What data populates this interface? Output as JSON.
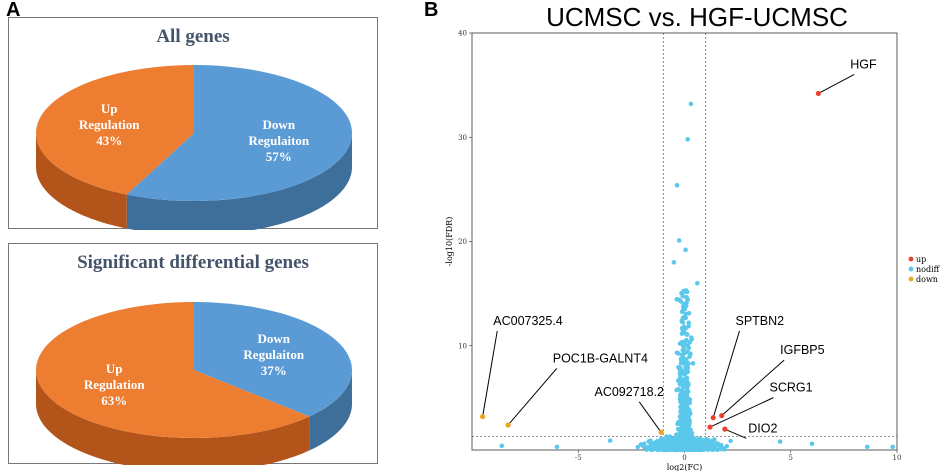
{
  "panels": {
    "a": "A",
    "b": "B"
  },
  "chart_data": [
    {
      "type": "pie",
      "title": "All genes",
      "slices": [
        {
          "label_line1": "Down",
          "label_line2": "Regulaiton",
          "percent_text": "57%",
          "value": 57,
          "color": "#5b9bd5",
          "side": "#3e6e9a"
        },
        {
          "label_line1": "Up",
          "label_line2": "Regulation",
          "percent_text": "43%",
          "value": 43,
          "color": "#ed7d31",
          "side": "#b3541a"
        }
      ]
    },
    {
      "type": "pie",
      "title": "Significant differential genes",
      "slices": [
        {
          "label_line1": "Down",
          "label_line2": "Regulaiton",
          "percent_text": "37%",
          "value": 37,
          "color": "#5b9bd5",
          "side": "#3e6e9a"
        },
        {
          "label_line1": "Up",
          "label_line2": "Regulation",
          "percent_text": "63%",
          "value": 63,
          "color": "#ed7d31",
          "side": "#b3541a"
        }
      ]
    },
    {
      "type": "scatter",
      "title": "UCMSC vs. HGF-UCMSC",
      "xlabel": "log2(FC)",
      "ylabel": "-log10(FDR)",
      "xlim": [
        -10,
        10
      ],
      "ylim": [
        0,
        40
      ],
      "xticks": [
        -5,
        0,
        5,
        10
      ],
      "yticks": [
        10,
        20,
        30,
        40
      ],
      "thresholds": {
        "x": [
          -1,
          1
        ],
        "y": 1.3
      },
      "legend": [
        {
          "label": "up",
          "color": "#e8412c"
        },
        {
          "label": "nodiff",
          "color": "#5bc8eb"
        },
        {
          "label": "down",
          "color": "#e8a723"
        }
      ],
      "labeled_points": [
        {
          "label": "HGF",
          "x": 6.3,
          "y": 34.2,
          "group": "up",
          "text_x": 7.8,
          "text_y": 36.6
        },
        {
          "label": "AC007325.4",
          "x": -9.5,
          "y": 3.2,
          "group": "down",
          "text_x": -9.0,
          "text_y": 12.0
        },
        {
          "label": "POC1B-GALNT4",
          "x": -8.3,
          "y": 2.4,
          "group": "down",
          "text_x": -6.2,
          "text_y": 8.4
        },
        {
          "label": "AC092718.2",
          "x": -1.1,
          "y": 1.7,
          "group": "down",
          "text_x": -2.6,
          "text_y": 5.2
        },
        {
          "label": "SPTBN2",
          "x": 1.35,
          "y": 3.1,
          "group": "up",
          "text_x": 2.4,
          "text_y": 12.0
        },
        {
          "label": "IGFBP5",
          "x": 1.75,
          "y": 3.3,
          "group": "up",
          "text_x": 4.5,
          "text_y": 9.2
        },
        {
          "label": "SCRG1",
          "x": 1.2,
          "y": 2.2,
          "group": "up",
          "text_x": 4.0,
          "text_y": 5.6
        },
        {
          "label": "DIO2",
          "x": 1.9,
          "y": 2.0,
          "group": "up",
          "text_x": 3.0,
          "text_y": 1.7
        }
      ]
    }
  ]
}
